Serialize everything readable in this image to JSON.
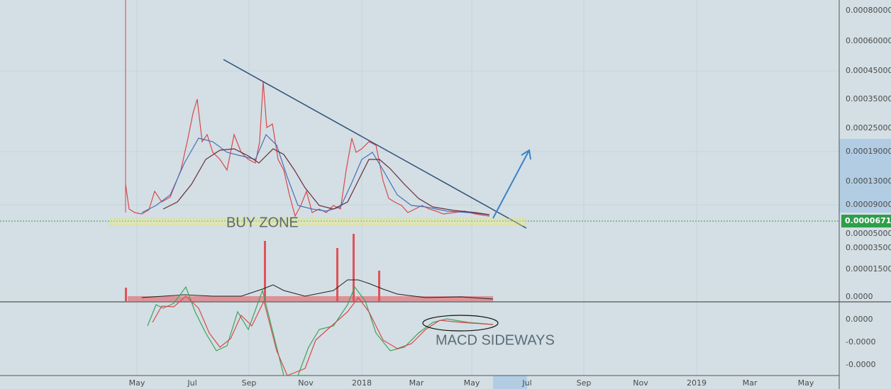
{
  "price_axis": {
    "labels": [
      "0.00080000",
      "0.00060000",
      "0.00045000",
      "0.00035000",
      "0.00025000",
      "0.00019000",
      "0.00013000",
      "0.00009000",
      "0.00005000",
      "0.00003500",
      "0.00001500"
    ]
  },
  "last_price": "0.00006710",
  "macd_axis": {
    "labels": [
      "0.0000",
      "0.0000",
      "-0.0000",
      "-0.0000"
    ]
  },
  "time_axis": {
    "labels": [
      "May",
      "Jul",
      "Sep",
      "Nov",
      "2018",
      "Mar",
      "May",
      "Jul",
      "Sep",
      "Nov",
      "2019",
      "Mar",
      "May"
    ]
  },
  "annotations": {
    "buy_zone": "BUY ZONE",
    "macd": "MACD SIDEWAYS"
  }
}
